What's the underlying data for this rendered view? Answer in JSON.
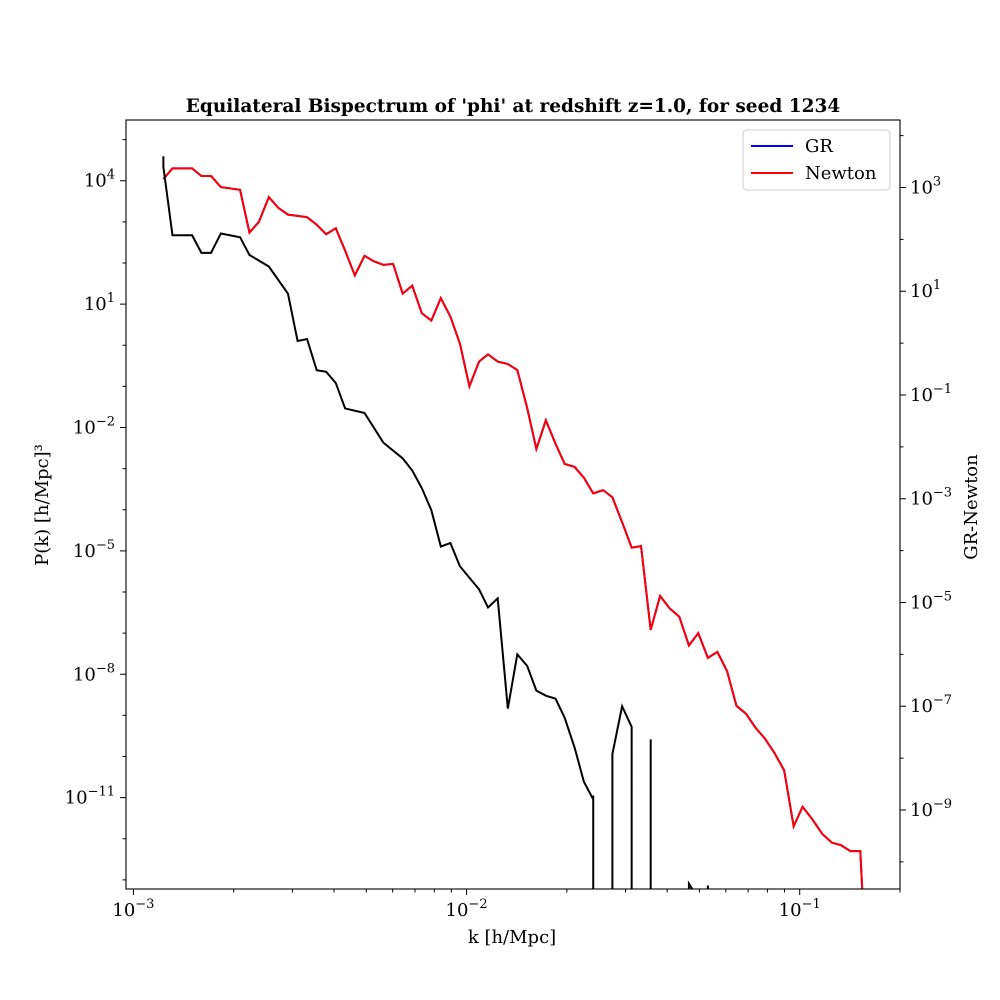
{
  "chart_data": {
    "type": "line",
    "title": "Equilateral Bispectrum of 'phi' at redshift z=1.0, for seed 1234",
    "xlabel": "k [h/Mpc]",
    "ylabel_left": "P(k) [h/Mpc]³",
    "ylabel_right": "GR-Newton",
    "x_scale": "log",
    "y_scale": "log",
    "xlim": [
      0.00095,
      0.2
    ],
    "ylim_left": [
      6e-14,
      300000.0
    ],
    "ylim_right": [
      3e-11,
      20000.0
    ],
    "grid": false,
    "legend_position": "top-right",
    "x_ticks": [
      {
        "value": 0.001,
        "base": "10",
        "exp": "−3"
      },
      {
        "value": 0.01,
        "base": "10",
        "exp": "−2"
      },
      {
        "value": 0.1,
        "base": "10",
        "exp": "−1"
      }
    ],
    "y_ticks_left": [
      {
        "value": 10000,
        "base": "10",
        "exp": "4"
      },
      {
        "value": 10,
        "base": "10",
        "exp": "1"
      },
      {
        "value": 0.01,
        "base": "10",
        "exp": "−2"
      },
      {
        "value": 1e-05,
        "base": "10",
        "exp": "−5"
      },
      {
        "value": 1e-08,
        "base": "10",
        "exp": "−8"
      },
      {
        "value": 1e-11,
        "base": "10",
        "exp": "−11"
      }
    ],
    "y_ticks_right": [
      {
        "value": 1000,
        "base": "10",
        "exp": "3"
      },
      {
        "value": 10,
        "base": "10",
        "exp": "1"
      },
      {
        "value": 0.1,
        "base": "10",
        "exp": "−1"
      },
      {
        "value": 0.001,
        "base": "10",
        "exp": "−3"
      },
      {
        "value": 1e-05,
        "base": "10",
        "exp": "−5"
      },
      {
        "value": 1e-07,
        "base": "10",
        "exp": "−7"
      },
      {
        "value": 1e-09,
        "base": "10",
        "exp": "−9"
      }
    ],
    "x": [
      0.00123,
      0.00131,
      0.00141,
      0.0015,
      0.0016,
      0.00171,
      0.00183,
      0.00196,
      0.00209,
      0.00223,
      0.00238,
      0.00255,
      0.00272,
      0.00291,
      0.00311,
      0.00332,
      0.00355,
      0.00379,
      0.00405,
      0.00432,
      0.00462,
      0.00494,
      0.00527,
      0.00563,
      0.00602,
      0.00643,
      0.00687,
      0.00734,
      0.00784,
      0.00837,
      0.00894,
      0.00955,
      0.0102,
      0.0109,
      0.0116,
      0.0124,
      0.0133,
      0.0142,
      0.0152,
      0.0162,
      0.0173,
      0.0185,
      0.0197,
      0.0211,
      0.0225,
      0.024,
      0.0257,
      0.0274,
      0.0293,
      0.0313,
      0.0334,
      0.0357,
      0.0381,
      0.0407,
      0.0435,
      0.0465,
      0.0496,
      0.053,
      0.0566,
      0.0605,
      0.0646,
      0.069,
      0.0737,
      0.0787,
      0.0841,
      0.0898,
      0.0959,
      0.102,
      0.109,
      0.117,
      0.125,
      0.133,
      0.142,
      0.152,
      0.159
    ],
    "series": [
      {
        "name": "GR",
        "axis": "left",
        "color": "#0000ff",
        "values": [
          11000,
          20000,
          20000,
          20000,
          13000,
          13000,
          7000,
          6500,
          6000,
          550,
          1000,
          4000,
          2200,
          1500,
          1400,
          1300,
          850,
          500,
          700,
          200,
          50,
          150,
          110,
          90,
          95,
          18,
          28,
          6,
          4,
          14,
          5,
          1.1,
          0.1,
          0.4,
          0.6,
          0.4,
          0.35,
          0.25,
          0.03,
          0.003,
          0.015,
          0.004,
          0.0013,
          0.0011,
          0.0006,
          0.00025,
          0.0003,
          0.0002,
          5e-05,
          1.2e-05,
          1.3e-05,
          1.2e-07,
          8e-07,
          4e-07,
          2.5e-07,
          5e-08,
          1e-07,
          2.5e-08,
          3.5e-08,
          1.2e-08,
          1.7e-09,
          1.1e-09,
          5e-10,
          2.7e-10,
          1.2e-10,
          4.6e-11,
          2e-12,
          6e-12,
          3e-12,
          1.3e-12,
          8e-13,
          7e-13,
          5e-13,
          5e-13,
          4e-16
        ]
      },
      {
        "name": "Newton",
        "axis": "left",
        "color": "#ff0000",
        "values": [
          11000,
          20000,
          20000,
          20000,
          13000,
          13000,
          7000,
          6500,
          6000,
          550,
          1000,
          4000,
          2200,
          1500,
          1400,
          1300,
          850,
          500,
          700,
          200,
          50,
          150,
          110,
          90,
          95,
          18,
          28,
          6,
          4,
          14,
          5,
          1.1,
          0.1,
          0.4,
          0.6,
          0.4,
          0.35,
          0.25,
          0.03,
          0.003,
          0.015,
          0.004,
          0.0013,
          0.0011,
          0.0006,
          0.00025,
          0.0003,
          0.0002,
          5e-05,
          1.2e-05,
          1.3e-05,
          1.2e-07,
          8e-07,
          4e-07,
          2.5e-07,
          5e-08,
          1e-07,
          2.5e-08,
          3.5e-08,
          1.2e-08,
          1.7e-09,
          1.1e-09,
          5e-10,
          2.7e-10,
          1.2e-10,
          4.6e-11,
          2e-12,
          6e-12,
          3e-12,
          1.3e-12,
          8e-13,
          7e-13,
          5e-13,
          5e-13,
          4e-16
        ]
      },
      {
        "axis": "right",
        "color": "#000000",
        "x": [
          0.00123,
          0.00123,
          0.00131,
          0.0015,
          0.0016,
          0.00171,
          0.00183,
          0.00209,
          0.00223,
          0.00255,
          0.00291,
          0.00311,
          0.00332,
          0.00355,
          0.00379,
          0.00405,
          0.00432,
          0.00494,
          0.00563,
          0.00643,
          0.00687,
          0.00734,
          0.00784,
          0.00837,
          0.00894,
          0.00955,
          0.0102,
          0.0109,
          0.0116,
          0.0124,
          0.0133,
          0.0142,
          0.0152,
          0.0162,
          0.0173,
          0.0185,
          0.0197,
          0.0211,
          0.0225,
          0.024,
          0.024,
          0.024,
          0.0274,
          0.0274,
          0.0293,
          0.0313,
          0.0313,
          0.0313,
          0.0357,
          0.0357,
          0.0357,
          0.0465,
          0.0465,
          0.053,
          0.053
        ],
        "values": [
          4000,
          2500,
          120,
          120,
          55,
          55,
          130,
          110,
          50,
          30,
          9,
          1.1,
          1.2,
          0.3,
          0.28,
          0.17,
          0.055,
          0.045,
          0.012,
          0.006,
          0.0035,
          0.0016,
          0.0006,
          0.00012,
          0.00014,
          5e-05,
          3e-05,
          1.8e-05,
          8e-06,
          1.2e-05,
          9e-08,
          1e-06,
          6e-07,
          2e-07,
          1.6e-07,
          1.4e-07,
          6e-08,
          1.6e-08,
          3.5e-09,
          1.6e-09,
          1.9e-09,
          1e-11,
          1e-11,
          1.2e-08,
          1e-07,
          4e-08,
          3e-08,
          1e-11,
          1e-11,
          2.3e-08,
          1e-11,
          1e-11,
          3.8e-11,
          1e-11,
          3.5e-11
        ]
      }
    ]
  }
}
